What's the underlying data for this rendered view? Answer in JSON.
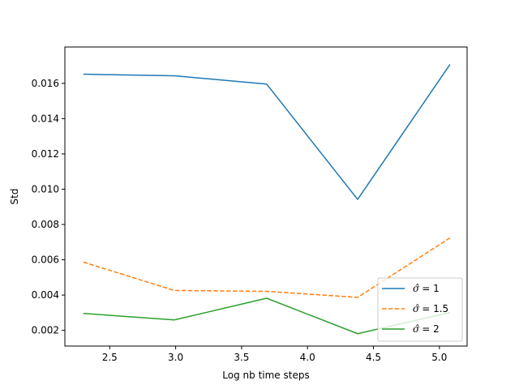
{
  "chart_data": {
    "type": "line",
    "title": "",
    "xlabel": "Log nb time  steps",
    "ylabel": "Std",
    "xlim": [
      2.16,
      5.21
    ],
    "ylim": [
      0.00111,
      0.01806
    ],
    "xticks": [
      2.5,
      3.0,
      3.5,
      4.0,
      4.5,
      5.0
    ],
    "xtick_labels": [
      "2.5",
      "3.0",
      "3.5",
      "4.0",
      "4.5",
      "5.0"
    ],
    "yticks": [
      0.002,
      0.004,
      0.006,
      0.008,
      0.01,
      0.012,
      0.014,
      0.016
    ],
    "ytick_labels": [
      "0.002",
      "0.004",
      "0.006",
      "0.008",
      "0.010",
      "0.012",
      "0.014",
      "0.016"
    ],
    "grid": false,
    "legend_position": "lower-right",
    "x": [
      2.3,
      2.99,
      3.69,
      4.38,
      5.08
    ],
    "series": [
      {
        "name": "σ̂ =  1",
        "legend_symbol": "σ̂",
        "legend_text": "=  1",
        "color": "#1f77b4",
        "linestyle": "solid",
        "values": [
          0.01652,
          0.01643,
          0.01596,
          0.00942,
          0.01707
        ]
      },
      {
        "name": "σ̂ =  1.5",
        "legend_symbol": "σ̂",
        "legend_text": "=  1.5",
        "color": "#ff7f0e",
        "linestyle": "dashed",
        "values": [
          0.00587,
          0.00426,
          0.00421,
          0.00387,
          0.00724
        ]
      },
      {
        "name": "σ̂ =  2",
        "legend_symbol": "σ̂",
        "legend_text": "=  2",
        "color": "#2ca02c",
        "linestyle": "solid",
        "values": [
          0.00296,
          0.00259,
          0.00382,
          0.00181,
          0.00301
        ]
      }
    ]
  }
}
